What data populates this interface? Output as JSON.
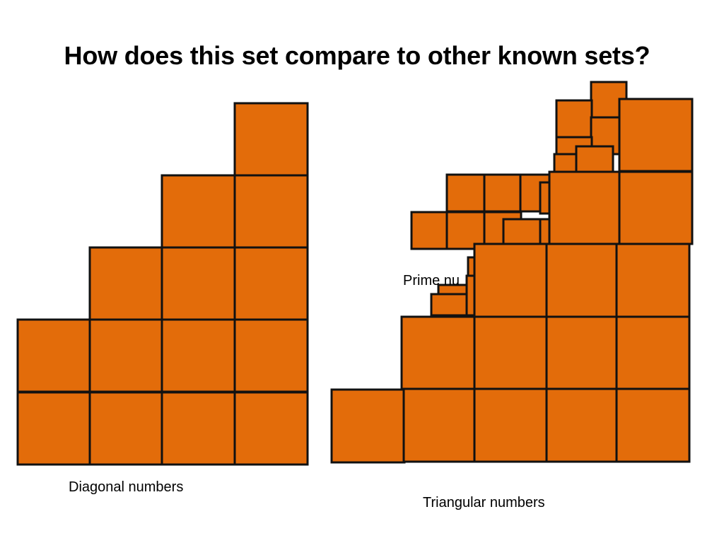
{
  "slide": {
    "title": "How does this set compare to other known sets?",
    "fill_color": "#e36c0a",
    "stroke_color": "#111111"
  },
  "figures": {
    "diagonal_caption": "Diagonal numbers",
    "triangular_caption": "Triangular numbers",
    "prime_caption": "Prime nu"
  }
}
